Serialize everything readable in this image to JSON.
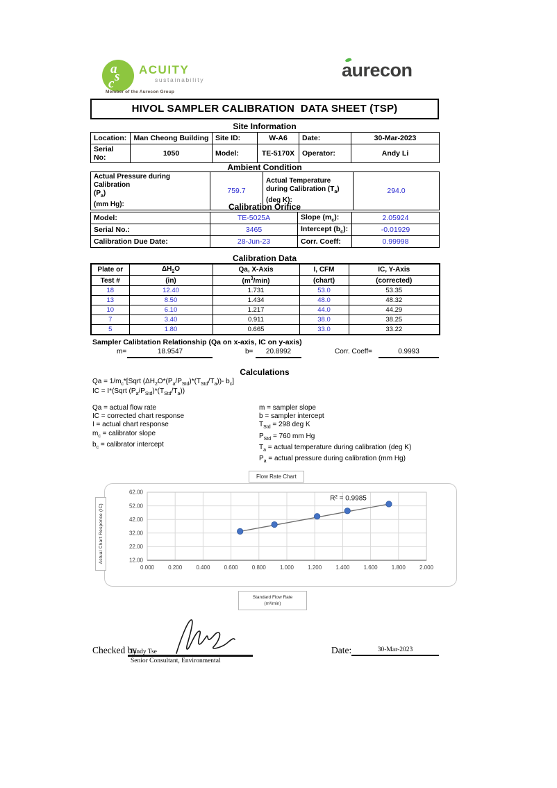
{
  "branding": {
    "acuity": {
      "monogram_letters": [
        "a",
        "s",
        "c"
      ],
      "name": "ACUITY",
      "subtitle": "sustainability",
      "tagline": "Member of the Aurecon Group",
      "green": "#8dc63f"
    },
    "aurecon": {
      "name": "aurecon",
      "text_color": "#3e3e3d",
      "leaf_color": "#55b948"
    }
  },
  "title": "HIVOL SAMPLER CALIBRATION  DATA SHEET (TSP)",
  "site_information": {
    "heading": "Site Information",
    "rows": [
      [
        "Location:",
        "Man Cheong Building",
        "Site ID:",
        "W-A6",
        "Date:",
        "30-Mar-2023"
      ],
      [
        "Serial No:",
        "1050",
        "Model:",
        "TE-5170X",
        "Operator:",
        "Andy Li"
      ]
    ]
  },
  "ambient_condition": {
    "heading": "Ambient Condition",
    "pressure_label": "Actual Pressure during Calibration<br>(P<sub>a</sub>)<br>(mm Hg):",
    "pressure_value": "759.7",
    "temperature_label": "Actual Temperature during Calibration (T<sub>a</sub>) (deg K):",
    "temperature_value": "294.0"
  },
  "calibration_orifice": {
    "heading": "Calibration Orifice",
    "rows": [
      {
        "label1": "Model:",
        "value1": "TE-5025A",
        "label2": "Slope (m<sub>c</sub>):",
        "value2": "2.05924"
      },
      {
        "label1": "Serial No.:",
        "value1": "3465",
        "label2": "Intercept (b<sub>c</sub>):",
        "value2": "-0.01929"
      },
      {
        "label1": "Calibration Due Date:",
        "value1": "28-Jun-23",
        "label2": "Corr. Coeff:",
        "value2": "0.99998"
      }
    ]
  },
  "calibration_data": {
    "heading": "Calibration Data",
    "headers_line1": [
      "Plate or",
      "ΔH<sub>2</sub>O",
      "Qa, X-Axis",
      "I, CFM",
      "IC, Y-Axis"
    ],
    "headers_line2": [
      "Test #",
      "(in)",
      "(m<sup>3</sup>/min)",
      "(chart)",
      "(corrected)"
    ],
    "rows": [
      [
        "18",
        "12.40",
        "1.731",
        "53.0",
        "53.35"
      ],
      [
        "13",
        "8.50",
        "1.434",
        "48.0",
        "48.32"
      ],
      [
        "10",
        "6.10",
        "1.217",
        "44.0",
        "44.29"
      ],
      [
        "7",
        "3.40",
        "0.911",
        "38.0",
        "38.25"
      ],
      [
        "5",
        "1.80",
        "0.665",
        "33.0",
        "33.22"
      ]
    ]
  },
  "relationship": {
    "heading": "Sampler Calibtation Relationship (Qa on x-axis, IC on y-axis)",
    "m_label": "m=",
    "m_value": "18.9547",
    "b_label": "b=",
    "b_value": "20.8992",
    "cc_label": "Corr. Coeff=",
    "cc_value": "0.9993"
  },
  "calculations": {
    "heading": "Calculations",
    "formula_qa": "Qa = 1/m<sub>c</sub>*[Sqrt (ΔH<sub>2</sub>O*(P<sub>a</sub>/P<sub>Std</sub>)*(T<sub>Std</sub>/T<sub>a</sub>))- b<sub>c</sub>]",
    "formula_ic": "IC = I*(Sqrt (P<sub>a</sub>/P<sub>Std</sub>)*(T<sub>Std</sub>/T<sub>a</sub>))",
    "definitions_left": [
      "Qa = actual flow rate",
      "IC = corrected chart response",
      "I = actual chart response",
      "m<sub>c</sub> = calibrator slope",
      "b<sub>c</sub> = calibrator intercept"
    ],
    "definitions_right": [
      "m = sampler slope",
      "b = sampler intercept",
      "T<sub>Std</sub> = 298 deg K",
      "P<sub>Std</sub> = 760 mm Hg",
      "T<sub>a</sub> = actual temperature during calibration (deg K)",
      "P<sub>a</sub> = actual pressure during calibration (mm Hg)"
    ]
  },
  "chart_data": {
    "type": "scatter",
    "title": "Flow Rate Chart",
    "xlabel": "Standard Flow Rate\n(m³/min)",
    "ylabel": "Actual Chart Response (IC)",
    "x": [
      0.665,
      0.911,
      1.217,
      1.434,
      1.731
    ],
    "y": [
      33.22,
      38.25,
      44.29,
      48.32,
      53.35
    ],
    "trendline": true,
    "annotation": "R² = 0.9985",
    "annotation_xy": [
      1.31,
      56.2
    ],
    "xlim": [
      0.0,
      2.0
    ],
    "ylim": [
      12.0,
      62.0
    ],
    "x_ticks": [
      "0.000",
      "0.200",
      "0.400",
      "0.600",
      "0.800",
      "1.000",
      "1.200",
      "1.400",
      "1.600",
      "1.800",
      "2.000"
    ],
    "y_ticks": [
      "12.00",
      "22.00",
      "32.00",
      "42.00",
      "52.00",
      "62.00"
    ],
    "grid": true,
    "legend": "none",
    "marker_color": "#4472c4",
    "trend_color": "#6b6b6b"
  },
  "signoff": {
    "checked_by_label": "Checked by",
    "checked_by_name": "Tandy Tse",
    "checked_by_title": "Senior Consultant, Environmental",
    "date_label": "Date:",
    "date_value": "30-Mar-2023"
  }
}
